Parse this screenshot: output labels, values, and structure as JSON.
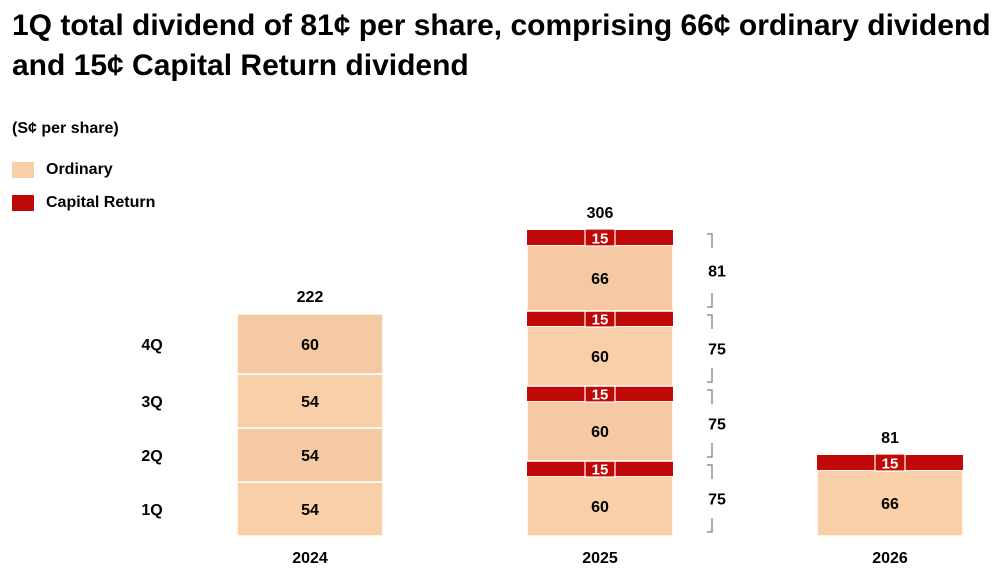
{
  "title": "1Q total dividend of 81¢ per share, comprising 66¢ ordinary dividend and 15¢ Capital Return dividend",
  "unit_label": "(S¢ per share)",
  "colors": {
    "ordinary": "#f9cfa8",
    "ordinary_alt": "#f4c9a4",
    "capital_return": "#c00a0a",
    "bracket": "#7f7f7f"
  },
  "legend": [
    {
      "name": "Ordinary",
      "color": "#f9cfa8"
    },
    {
      "name": "Capital Return",
      "color": "#c00a0a"
    }
  ],
  "quarter_labels": [
    "1Q",
    "2Q",
    "3Q",
    "4Q"
  ],
  "chart_data": {
    "type": "bar",
    "stacked": true,
    "categories": [
      "2024",
      "2025",
      "2026"
    ],
    "totals": [
      222,
      306,
      81
    ],
    "ylim": [
      0,
      320
    ],
    "bars": [
      {
        "year": "2024",
        "segments": [
          {
            "quarter": "1Q",
            "type": "ordinary",
            "value": 54
          },
          {
            "quarter": "2Q",
            "type": "ordinary",
            "value": 54
          },
          {
            "quarter": "3Q",
            "type": "ordinary",
            "value": 54
          },
          {
            "quarter": "4Q",
            "type": "ordinary",
            "value": 60
          }
        ]
      },
      {
        "year": "2025",
        "segments": [
          {
            "quarter": "1Q",
            "type": "ordinary",
            "value": 60
          },
          {
            "quarter": "1Q",
            "type": "capital_return",
            "value": 15
          },
          {
            "quarter": "2Q",
            "type": "ordinary",
            "value": 60
          },
          {
            "quarter": "2Q",
            "type": "capital_return",
            "value": 15
          },
          {
            "quarter": "3Q",
            "type": "ordinary",
            "value": 60
          },
          {
            "quarter": "3Q",
            "type": "capital_return",
            "value": 15
          },
          {
            "quarter": "4Q",
            "type": "ordinary",
            "value": 66
          },
          {
            "quarter": "4Q",
            "type": "capital_return",
            "value": 15
          }
        ]
      },
      {
        "year": "2026",
        "segments": [
          {
            "quarter": "1Q",
            "type": "ordinary",
            "value": 66
          },
          {
            "quarter": "1Q",
            "type": "capital_return",
            "value": 15
          }
        ]
      }
    ],
    "quarter_totals_2025": [
      75,
      75,
      75,
      81
    ]
  }
}
